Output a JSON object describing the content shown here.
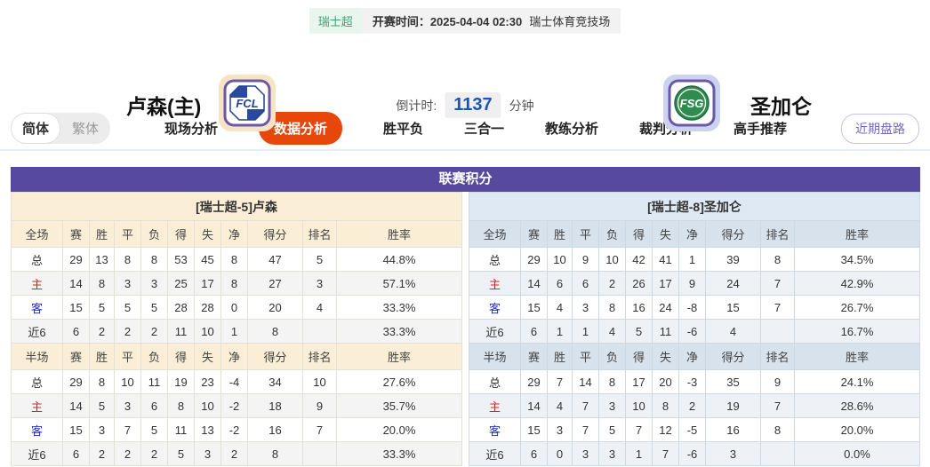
{
  "meta": {
    "league_badge": "瑞士超",
    "kickoff_label": "开赛时间：",
    "kickoff_time": "2025-04-04 02:30",
    "venue": "瑞士体育竞技场"
  },
  "teams": {
    "home": {
      "name": "卢森(主)",
      "logo_text": "FCL"
    },
    "away": {
      "name": "圣加仑",
      "logo_text": "FSG"
    }
  },
  "countdown": {
    "label": "倒计时:",
    "value": "1137",
    "unit": "分钟"
  },
  "nav": {
    "lang_toggle": {
      "simplified": "简体",
      "traditional": "繁体"
    },
    "tabs": [
      {
        "label": "现场分析",
        "active": false
      },
      {
        "label": "数据分析",
        "active": true
      },
      {
        "label": "胜平负",
        "active": false
      },
      {
        "label": "三合一",
        "active": false
      },
      {
        "label": "教练分析",
        "active": false
      },
      {
        "label": "裁判分析",
        "active": false
      },
      {
        "label": "高手推荐",
        "active": false
      }
    ],
    "recent_button": "近期盘路"
  },
  "section_title": "联赛积分",
  "colors": {
    "accent_purple": "#57499E",
    "active_tab_orange": "#E8470B",
    "home_red": "#CC2A2A",
    "away_blue": "#2233BB",
    "countdown_blue": "#1A56B4",
    "badge_green": "#3DA371",
    "cream_header": "#FAEFD6",
    "blue_header": "#DFE9F3"
  },
  "tables": [
    {
      "team_header": "[瑞士超-5]卢森",
      "full": {
        "header": [
          "全场",
          "赛",
          "胜",
          "平",
          "负",
          "得",
          "失",
          "净",
          "得分",
          "排名",
          "胜率"
        ],
        "rows": [
          {
            "type": "total",
            "cells": [
              "总",
              "29",
              "13",
              "8",
              "8",
              "53",
              "45",
              "8",
              "47",
              "5",
              "44.8%"
            ]
          },
          {
            "type": "home",
            "cells": [
              "主",
              "14",
              "8",
              "3",
              "3",
              "25",
              "17",
              "8",
              "27",
              "3",
              "57.1%"
            ]
          },
          {
            "type": "away",
            "cells": [
              "客",
              "15",
              "5",
              "5",
              "5",
              "28",
              "28",
              "0",
              "20",
              "4",
              "33.3%"
            ]
          },
          {
            "type": "recent",
            "cells": [
              "近6",
              "6",
              "2",
              "2",
              "2",
              "11",
              "10",
              "1",
              "8",
              "",
              "33.3%"
            ]
          }
        ]
      },
      "half": {
        "header": [
          "半场",
          "赛",
          "胜",
          "平",
          "负",
          "得",
          "失",
          "净",
          "得分",
          "排名",
          "胜率"
        ],
        "rows": [
          {
            "type": "total",
            "cells": [
              "总",
              "29",
              "8",
              "10",
              "11",
              "19",
              "23",
              "-4",
              "34",
              "10",
              "27.6%"
            ]
          },
          {
            "type": "home",
            "cells": [
              "主",
              "14",
              "5",
              "3",
              "6",
              "8",
              "10",
              "-2",
              "18",
              "9",
              "35.7%"
            ]
          },
          {
            "type": "away",
            "cells": [
              "客",
              "15",
              "3",
              "7",
              "5",
              "11",
              "13",
              "-2",
              "16",
              "7",
              "20.0%"
            ]
          },
          {
            "type": "recent",
            "cells": [
              "近6",
              "6",
              "2",
              "2",
              "2",
              "5",
              "3",
              "2",
              "8",
              "",
              "33.3%"
            ]
          }
        ]
      }
    },
    {
      "team_header": "[瑞士超-8]圣加仑",
      "full": {
        "header": [
          "全场",
          "赛",
          "胜",
          "平",
          "负",
          "得",
          "失",
          "净",
          "得分",
          "排名",
          "胜率"
        ],
        "rows": [
          {
            "type": "total",
            "cells": [
              "总",
              "29",
              "10",
              "9",
              "10",
              "42",
              "41",
              "1",
              "39",
              "8",
              "34.5%"
            ]
          },
          {
            "type": "home",
            "cells": [
              "主",
              "14",
              "6",
              "6",
              "2",
              "26",
              "17",
              "9",
              "24",
              "7",
              "42.9%"
            ]
          },
          {
            "type": "away",
            "cells": [
              "客",
              "15",
              "4",
              "3",
              "8",
              "16",
              "24",
              "-8",
              "15",
              "7",
              "26.7%"
            ]
          },
          {
            "type": "recent",
            "cells": [
              "近6",
              "6",
              "1",
              "1",
              "4",
              "5",
              "11",
              "-6",
              "4",
              "",
              "16.7%"
            ]
          }
        ]
      },
      "half": {
        "header": [
          "半场",
          "赛",
          "胜",
          "平",
          "负",
          "得",
          "失",
          "净",
          "得分",
          "排名",
          "胜率"
        ],
        "rows": [
          {
            "type": "total",
            "cells": [
              "总",
              "29",
              "7",
              "14",
              "8",
              "17",
              "20",
              "-3",
              "35",
              "9",
              "24.1%"
            ]
          },
          {
            "type": "home",
            "cells": [
              "主",
              "14",
              "4",
              "7",
              "3",
              "10",
              "8",
              "2",
              "19",
              "7",
              "28.6%"
            ]
          },
          {
            "type": "away",
            "cells": [
              "客",
              "15",
              "3",
              "7",
              "5",
              "7",
              "12",
              "-5",
              "16",
              "8",
              "20.0%"
            ]
          },
          {
            "type": "recent",
            "cells": [
              "近6",
              "6",
              "0",
              "3",
              "3",
              "1",
              "7",
              "-6",
              "3",
              "",
              "0.0%"
            ]
          }
        ]
      }
    }
  ]
}
